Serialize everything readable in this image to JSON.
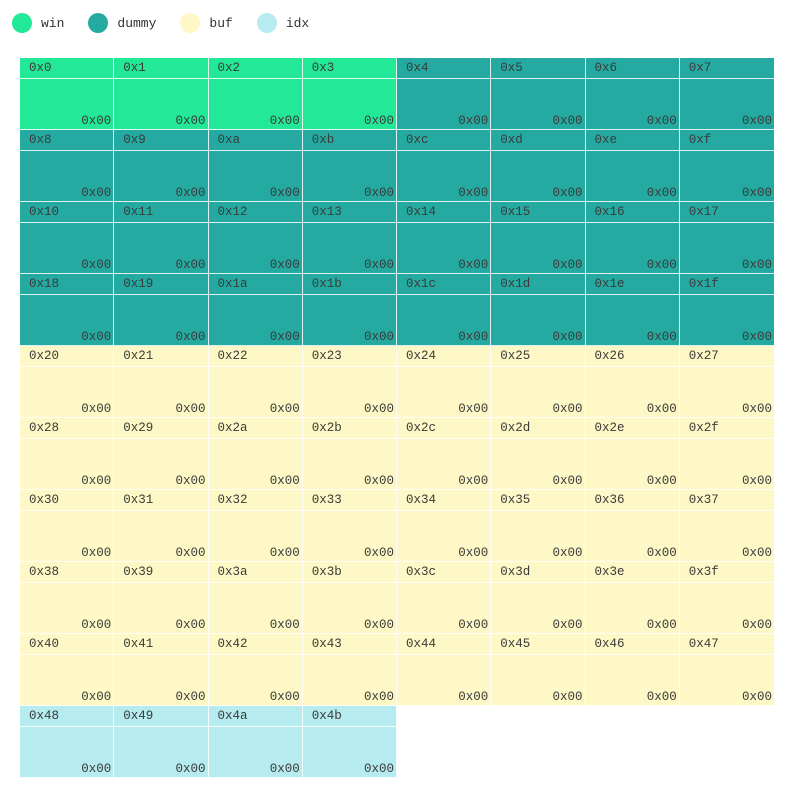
{
  "legend": [
    {
      "label": "win",
      "color": "#23e897",
      "icon": "legend-dot"
    },
    {
      "label": "dummy",
      "color": "#24aaa1",
      "icon": "legend-dot"
    },
    {
      "label": "buf",
      "color": "#fdf8c5",
      "icon": "legend-dot"
    },
    {
      "label": "idx",
      "color": "#b6ebf0",
      "icon": "legend-dot"
    }
  ],
  "memory": {
    "columns": 8,
    "regions": [
      {
        "name": "win",
        "start": 0,
        "count": 4,
        "color": "#23e897"
      },
      {
        "name": "dummy",
        "start": 4,
        "count": 28,
        "color": "#24aaa1"
      },
      {
        "name": "buf",
        "start": 32,
        "count": 40,
        "color": "#fdf8c5"
      },
      {
        "name": "idx",
        "start": 72,
        "count": 4,
        "color": "#b6ebf0"
      }
    ],
    "cells": [
      {
        "addr": "0x0",
        "value": "0x00"
      },
      {
        "addr": "0x1",
        "value": "0x00"
      },
      {
        "addr": "0x2",
        "value": "0x00"
      },
      {
        "addr": "0x3",
        "value": "0x00"
      },
      {
        "addr": "0x4",
        "value": "0x00"
      },
      {
        "addr": "0x5",
        "value": "0x00"
      },
      {
        "addr": "0x6",
        "value": "0x00"
      },
      {
        "addr": "0x7",
        "value": "0x00"
      },
      {
        "addr": "0x8",
        "value": "0x00"
      },
      {
        "addr": "0x9",
        "value": "0x00"
      },
      {
        "addr": "0xa",
        "value": "0x00"
      },
      {
        "addr": "0xb",
        "value": "0x00"
      },
      {
        "addr": "0xc",
        "value": "0x00"
      },
      {
        "addr": "0xd",
        "value": "0x00"
      },
      {
        "addr": "0xe",
        "value": "0x00"
      },
      {
        "addr": "0xf",
        "value": "0x00"
      },
      {
        "addr": "0x10",
        "value": "0x00"
      },
      {
        "addr": "0x11",
        "value": "0x00"
      },
      {
        "addr": "0x12",
        "value": "0x00"
      },
      {
        "addr": "0x13",
        "value": "0x00"
      },
      {
        "addr": "0x14",
        "value": "0x00"
      },
      {
        "addr": "0x15",
        "value": "0x00"
      },
      {
        "addr": "0x16",
        "value": "0x00"
      },
      {
        "addr": "0x17",
        "value": "0x00"
      },
      {
        "addr": "0x18",
        "value": "0x00"
      },
      {
        "addr": "0x19",
        "value": "0x00"
      },
      {
        "addr": "0x1a",
        "value": "0x00"
      },
      {
        "addr": "0x1b",
        "value": "0x00"
      },
      {
        "addr": "0x1c",
        "value": "0x00"
      },
      {
        "addr": "0x1d",
        "value": "0x00"
      },
      {
        "addr": "0x1e",
        "value": "0x00"
      },
      {
        "addr": "0x1f",
        "value": "0x00"
      },
      {
        "addr": "0x20",
        "value": "0x00"
      },
      {
        "addr": "0x21",
        "value": "0x00"
      },
      {
        "addr": "0x22",
        "value": "0x00"
      },
      {
        "addr": "0x23",
        "value": "0x00"
      },
      {
        "addr": "0x24",
        "value": "0x00"
      },
      {
        "addr": "0x25",
        "value": "0x00"
      },
      {
        "addr": "0x26",
        "value": "0x00"
      },
      {
        "addr": "0x27",
        "value": "0x00"
      },
      {
        "addr": "0x28",
        "value": "0x00"
      },
      {
        "addr": "0x29",
        "value": "0x00"
      },
      {
        "addr": "0x2a",
        "value": "0x00"
      },
      {
        "addr": "0x2b",
        "value": "0x00"
      },
      {
        "addr": "0x2c",
        "value": "0x00"
      },
      {
        "addr": "0x2d",
        "value": "0x00"
      },
      {
        "addr": "0x2e",
        "value": "0x00"
      },
      {
        "addr": "0x2f",
        "value": "0x00"
      },
      {
        "addr": "0x30",
        "value": "0x00"
      },
      {
        "addr": "0x31",
        "value": "0x00"
      },
      {
        "addr": "0x32",
        "value": "0x00"
      },
      {
        "addr": "0x33",
        "value": "0x00"
      },
      {
        "addr": "0x34",
        "value": "0x00"
      },
      {
        "addr": "0x35",
        "value": "0x00"
      },
      {
        "addr": "0x36",
        "value": "0x00"
      },
      {
        "addr": "0x37",
        "value": "0x00"
      },
      {
        "addr": "0x38",
        "value": "0x00"
      },
      {
        "addr": "0x39",
        "value": "0x00"
      },
      {
        "addr": "0x3a",
        "value": "0x00"
      },
      {
        "addr": "0x3b",
        "value": "0x00"
      },
      {
        "addr": "0x3c",
        "value": "0x00"
      },
      {
        "addr": "0x3d",
        "value": "0x00"
      },
      {
        "addr": "0x3e",
        "value": "0x00"
      },
      {
        "addr": "0x3f",
        "value": "0x00"
      },
      {
        "addr": "0x40",
        "value": "0x00"
      },
      {
        "addr": "0x41",
        "value": "0x00"
      },
      {
        "addr": "0x42",
        "value": "0x00"
      },
      {
        "addr": "0x43",
        "value": "0x00"
      },
      {
        "addr": "0x44",
        "value": "0x00"
      },
      {
        "addr": "0x45",
        "value": "0x00"
      },
      {
        "addr": "0x46",
        "value": "0x00"
      },
      {
        "addr": "0x47",
        "value": "0x00"
      },
      {
        "addr": "0x48",
        "value": "0x00"
      },
      {
        "addr": "0x49",
        "value": "0x00"
      },
      {
        "addr": "0x4a",
        "value": "0x00"
      },
      {
        "addr": "0x4b",
        "value": "0x00"
      }
    ]
  }
}
